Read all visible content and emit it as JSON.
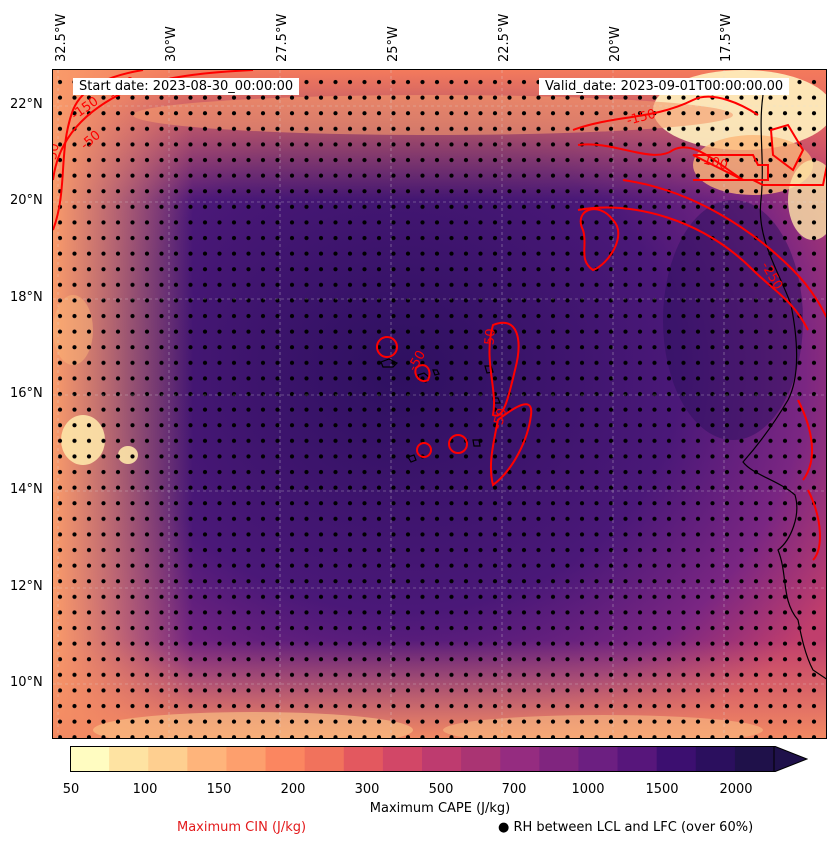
{
  "map": {
    "start_date": "Start date: 2023-08-30_00:00:00",
    "valid_date": "Valid_date: 2023-09-01T00:00:00.00",
    "lon_labels": [
      "32.5°W",
      "30°W",
      "27.5°W",
      "25°W",
      "22.5°W",
      "20°W",
      "17.5°W"
    ],
    "lat_labels": [
      "22°N",
      "20°N",
      "18°N",
      "16°N",
      "14°N",
      "12°N",
      "10°N"
    ],
    "cin_contour_labels": [
      "-150",
      "-100",
      "-50",
      "-50",
      "-150",
      "-100",
      "-250",
      "-50",
      "-50",
      "-50"
    ],
    "colors": {
      "cin_contour": "#ff0000",
      "coastline": "#000000",
      "stipple": "#000000"
    }
  },
  "colorbar": {
    "label": "Maximum CAPE (J/kg)",
    "ticks": [
      "50",
      "100",
      "150",
      "200",
      "300",
      "500",
      "700",
      "1000",
      "1500",
      "2000"
    ],
    "extend": "max",
    "colors": [
      "#fffcc1",
      "#fee3a2",
      "#fecf90",
      "#feb47b",
      "#fd9f6d",
      "#fb8660",
      "#f1725c",
      "#e3585f",
      "#d24767",
      "#be3b6f",
      "#aa3473",
      "#952c80",
      "#80257f",
      "#6c1f81",
      "#57167b",
      "#3c0f70",
      "#2b0f5e",
      "#1f114a"
    ]
  },
  "legend": {
    "cin_label": "Maximum CIN (J/kg)",
    "rh_label": "● RH between LCL and LFC (over 60%)"
  }
}
